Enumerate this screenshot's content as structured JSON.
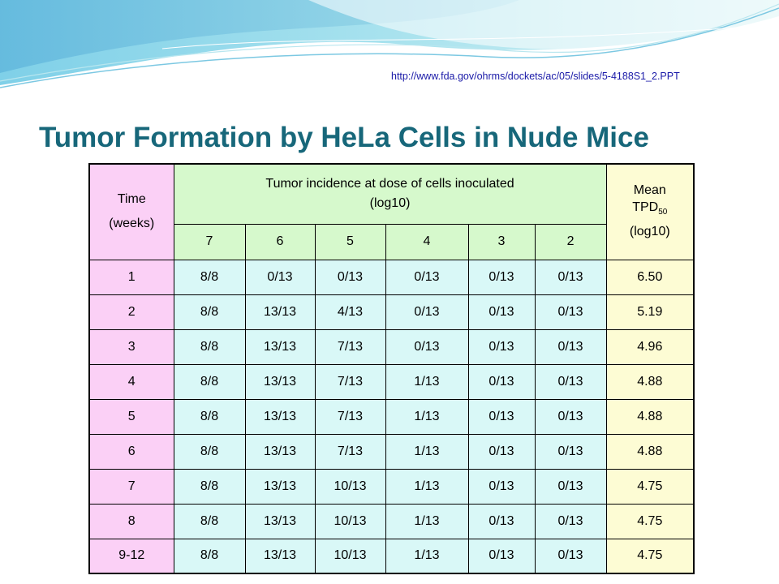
{
  "source_url": "http://www.fda.gov/ohrms/dockets/ac/05/slides/5-4188S1_2.PPT",
  "title": "Tumor Formation by HeLa Cells in Nude Mice",
  "table": {
    "time_header_line1": "Time",
    "time_header_line2": "(weeks)",
    "incidence_header_line1": "Tumor incidence at dose of cells inoculated",
    "incidence_header_line2": "(log10)",
    "tpd_header_line1": "Mean",
    "tpd_header_main": "TPD",
    "tpd_header_sub": "50",
    "tpd_header_line3": "(log10)",
    "doses": [
      "7",
      "6",
      "5",
      "4",
      "3",
      "2"
    ],
    "rows": [
      {
        "time": "1",
        "cells": [
          "8/8",
          "0/13",
          "0/13",
          "0/13",
          "0/13",
          "0/13"
        ],
        "tpd": "6.50"
      },
      {
        "time": "2",
        "cells": [
          "8/8",
          "13/13",
          "4/13",
          "0/13",
          "0/13",
          "0/13"
        ],
        "tpd": "5.19"
      },
      {
        "time": "3",
        "cells": [
          "8/8",
          "13/13",
          "7/13",
          "0/13",
          "0/13",
          "0/13"
        ],
        "tpd": "4.96"
      },
      {
        "time": "4",
        "cells": [
          "8/8",
          "13/13",
          "7/13",
          "1/13",
          "0/13",
          "0/13"
        ],
        "tpd": "4.88"
      },
      {
        "time": "5",
        "cells": [
          "8/8",
          "13/13",
          "7/13",
          "1/13",
          "0/13",
          "0/13"
        ],
        "tpd": "4.88"
      },
      {
        "time": "6",
        "cells": [
          "8/8",
          "13/13",
          "7/13",
          "1/13",
          "0/13",
          "0/13"
        ],
        "tpd": "4.88"
      },
      {
        "time": "7",
        "cells": [
          "8/8",
          "13/13",
          "10/13",
          "1/13",
          "0/13",
          "0/13"
        ],
        "tpd": "4.75"
      },
      {
        "time": "8",
        "cells": [
          "8/8",
          "13/13",
          "10/13",
          "1/13",
          "0/13",
          "0/13"
        ],
        "tpd": "4.75"
      },
      {
        "time": "9-12",
        "cells": [
          "8/8",
          "13/13",
          "10/13",
          "1/13",
          "0/13",
          "0/13"
        ],
        "tpd": "4.75"
      }
    ]
  },
  "colors": {
    "title": "#17677a",
    "url": "#1a1aa8",
    "time_column": "#fbd0f6",
    "data_cells": "#d9f8f7",
    "incidence_header": "#d6f9cc",
    "tpd_column": "#fdfcd4"
  }
}
